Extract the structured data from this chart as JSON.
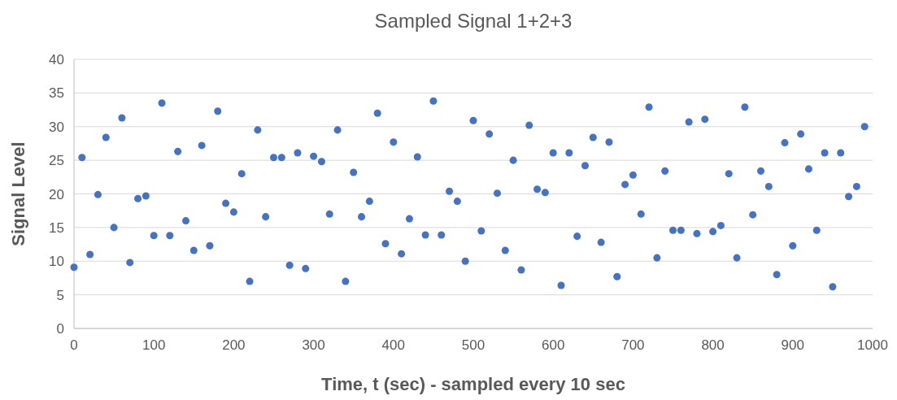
{
  "chart_data": {
    "type": "scatter",
    "title": "Sampled Signal 1+2+3",
    "xlabel": "Time, t (sec) - sampled every 10 sec",
    "ylabel": "Signal Level",
    "x": [
      0,
      10,
      20,
      30,
      40,
      50,
      60,
      70,
      80,
      90,
      100,
      110,
      120,
      130,
      140,
      150,
      160,
      170,
      180,
      190,
      200,
      210,
      220,
      230,
      240,
      250,
      260,
      270,
      280,
      290,
      300,
      310,
      320,
      330,
      340,
      350,
      360,
      370,
      380,
      390,
      400,
      410,
      420,
      430,
      440,
      450,
      460,
      470,
      480,
      490,
      500,
      510,
      520,
      530,
      540,
      550,
      560,
      570,
      580,
      590,
      600,
      610,
      620,
      630,
      640,
      650,
      660,
      670,
      680,
      690,
      700,
      710,
      720,
      730,
      740,
      750,
      760,
      770,
      780,
      790,
      800,
      810,
      820,
      830,
      840,
      850,
      860,
      870,
      880,
      890,
      900,
      910,
      920,
      930,
      940,
      950,
      960,
      970,
      980,
      990
    ],
    "series": [
      {
        "color": "#4472c4",
        "values": [
          9.1,
          25.4,
          11.0,
          19.9,
          28.4,
          15.0,
          31.3,
          9.8,
          19.3,
          19.7,
          13.8,
          33.5,
          13.8,
          26.3,
          16.0,
          11.6,
          27.2,
          12.3,
          32.3,
          18.6,
          17.3,
          23.0,
          7.0,
          29.5,
          16.6,
          25.4,
          25.4,
          9.4,
          26.1,
          8.9,
          25.6,
          24.8,
          17.0,
          29.5,
          7.0,
          23.2,
          16.6,
          18.9,
          32.0,
          12.6,
          27.7,
          11.1,
          16.3,
          25.5,
          13.9,
          33.8,
          13.9,
          20.4,
          18.9,
          10.0,
          30.9,
          14.5,
          28.9,
          20.1,
          11.6,
          25.0,
          8.7,
          30.2,
          20.7,
          20.2,
          26.1,
          6.4,
          26.1,
          13.7,
          24.2,
          28.4,
          12.8,
          27.7,
          7.7,
          21.4,
          22.8,
          17.0,
          32.9,
          10.5,
          23.4,
          14.6,
          14.6,
          30.7,
          14.1,
          31.1,
          14.4,
          15.3,
          23.0,
          10.5,
          32.9,
          16.9,
          23.4,
          21.1,
          8.0,
          27.6,
          12.3,
          28.9,
          23.7,
          14.6,
          26.1,
          6.2,
          26.1,
          19.6,
          21.1,
          30.0
        ]
      }
    ],
    "xlim": [
      0,
      1000
    ],
    "xticks": [
      0,
      100,
      200,
      300,
      400,
      500,
      600,
      700,
      800,
      900,
      1000
    ],
    "ylim": [
      0,
      40
    ],
    "yticks": [
      0,
      5,
      10,
      15,
      20,
      25,
      30,
      35,
      40
    ],
    "grid": "y",
    "marker": "circle"
  }
}
